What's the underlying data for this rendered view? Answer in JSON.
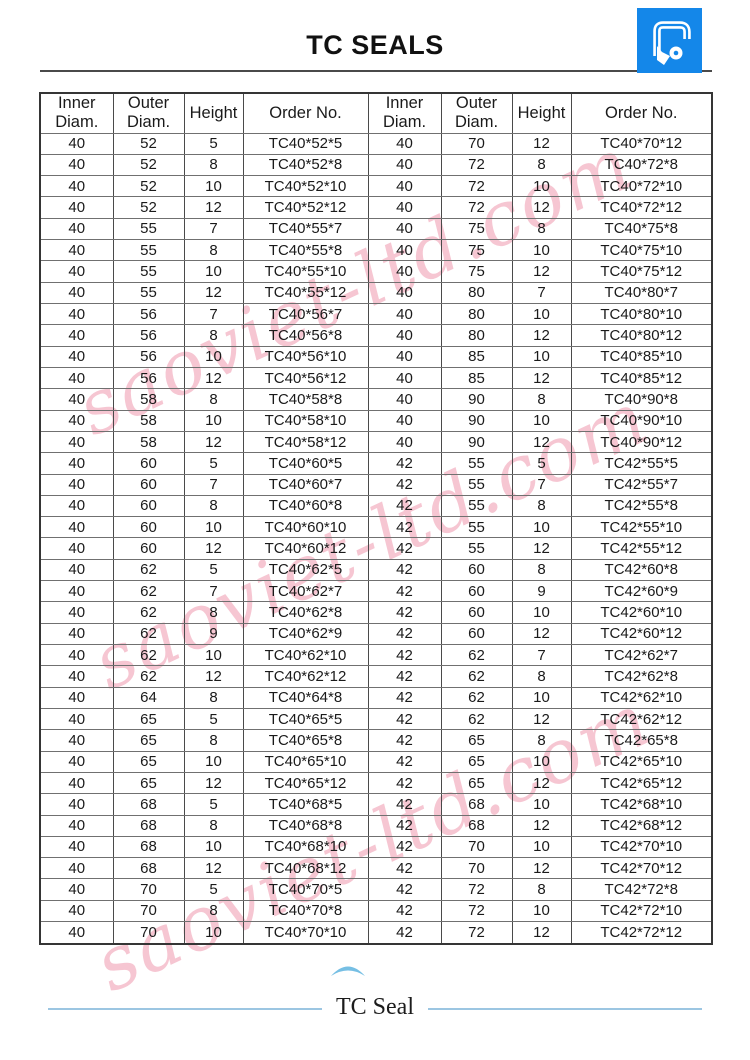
{
  "header": {
    "title": "TC SEALS"
  },
  "logo": {
    "background_color": "#1487e9",
    "icon": "oil-seal-cross-section"
  },
  "watermark": {
    "text": "saoviet-ltd.com",
    "color": "rgba(238,151,173,0.55)"
  },
  "table": {
    "headers": [
      "Inner Diam.",
      "Outer Diam.",
      "Height",
      "Order No.",
      "Inner Diam.",
      "Outer Diam.",
      "Height",
      "Order No."
    ],
    "rows": [
      [
        "40",
        "52",
        "5",
        "TC40*52*5",
        "40",
        "70",
        "12",
        "TC40*70*12"
      ],
      [
        "40",
        "52",
        "8",
        "TC40*52*8",
        "40",
        "72",
        "8",
        "TC40*72*8"
      ],
      [
        "40",
        "52",
        "10",
        "TC40*52*10",
        "40",
        "72",
        "10",
        "TC40*72*10"
      ],
      [
        "40",
        "52",
        "12",
        "TC40*52*12",
        "40",
        "72",
        "12",
        "TC40*72*12"
      ],
      [
        "40",
        "55",
        "7",
        "TC40*55*7",
        "40",
        "75",
        "8",
        "TC40*75*8"
      ],
      [
        "40",
        "55",
        "8",
        "TC40*55*8",
        "40",
        "75",
        "10",
        "TC40*75*10"
      ],
      [
        "40",
        "55",
        "10",
        "TC40*55*10",
        "40",
        "75",
        "12",
        "TC40*75*12"
      ],
      [
        "40",
        "55",
        "12",
        "TC40*55*12",
        "40",
        "80",
        "7",
        "TC40*80*7"
      ],
      [
        "40",
        "56",
        "7",
        "TC40*56*7",
        "40",
        "80",
        "10",
        "TC40*80*10"
      ],
      [
        "40",
        "56",
        "8",
        "TC40*56*8",
        "40",
        "80",
        "12",
        "TC40*80*12"
      ],
      [
        "40",
        "56",
        "10",
        "TC40*56*10",
        "40",
        "85",
        "10",
        "TC40*85*10"
      ],
      [
        "40",
        "56",
        "12",
        "TC40*56*12",
        "40",
        "85",
        "12",
        "TC40*85*12"
      ],
      [
        "40",
        "58",
        "8",
        "TC40*58*8",
        "40",
        "90",
        "8",
        "TC40*90*8"
      ],
      [
        "40",
        "58",
        "10",
        "TC40*58*10",
        "40",
        "90",
        "10",
        "TC40*90*10"
      ],
      [
        "40",
        "58",
        "12",
        "TC40*58*12",
        "40",
        "90",
        "12",
        "TC40*90*12"
      ],
      [
        "40",
        "60",
        "5",
        "TC40*60*5",
        "42",
        "55",
        "5",
        "TC42*55*5"
      ],
      [
        "40",
        "60",
        "7",
        "TC40*60*7",
        "42",
        "55",
        "7",
        "TC42*55*7"
      ],
      [
        "40",
        "60",
        "8",
        "TC40*60*8",
        "42",
        "55",
        "8",
        "TC42*55*8"
      ],
      [
        "40",
        "60",
        "10",
        "TC40*60*10",
        "42",
        "55",
        "10",
        "TC42*55*10"
      ],
      [
        "40",
        "60",
        "12",
        "TC40*60*12",
        "42",
        "55",
        "12",
        "TC42*55*12"
      ],
      [
        "40",
        "62",
        "5",
        "TC40*62*5",
        "42",
        "60",
        "8",
        "TC42*60*8"
      ],
      [
        "40",
        "62",
        "7",
        "TC40*62*7",
        "42",
        "60",
        "9",
        "TC42*60*9"
      ],
      [
        "40",
        "62",
        "8",
        "TC40*62*8",
        "42",
        "60",
        "10",
        "TC42*60*10"
      ],
      [
        "40",
        "62",
        "9",
        "TC40*62*9",
        "42",
        "60",
        "12",
        "TC42*60*12"
      ],
      [
        "40",
        "62",
        "10",
        "TC40*62*10",
        "42",
        "62",
        "7",
        "TC42*62*7"
      ],
      [
        "40",
        "62",
        "12",
        "TC40*62*12",
        "42",
        "62",
        "8",
        "TC42*62*8"
      ],
      [
        "40",
        "64",
        "8",
        "TC40*64*8",
        "42",
        "62",
        "10",
        "TC42*62*10"
      ],
      [
        "40",
        "65",
        "5",
        "TC40*65*5",
        "42",
        "62",
        "12",
        "TC42*62*12"
      ],
      [
        "40",
        "65",
        "8",
        "TC40*65*8",
        "42",
        "65",
        "8",
        "TC42*65*8"
      ],
      [
        "40",
        "65",
        "10",
        "TC40*65*10",
        "42",
        "65",
        "10",
        "TC42*65*10"
      ],
      [
        "40",
        "65",
        "12",
        "TC40*65*12",
        "42",
        "65",
        "12",
        "TC42*65*12"
      ],
      [
        "40",
        "68",
        "5",
        "TC40*68*5",
        "42",
        "68",
        "10",
        "TC42*68*10"
      ],
      [
        "40",
        "68",
        "8",
        "TC40*68*8",
        "42",
        "68",
        "12",
        "TC42*68*12"
      ],
      [
        "40",
        "68",
        "10",
        "TC40*68*10",
        "42",
        "70",
        "10",
        "TC42*70*10"
      ],
      [
        "40",
        "68",
        "12",
        "TC40*68*12",
        "42",
        "70",
        "12",
        "TC42*70*12"
      ],
      [
        "40",
        "70",
        "5",
        "TC40*70*5",
        "42",
        "72",
        "8",
        "TC42*72*8"
      ],
      [
        "40",
        "70",
        "8",
        "TC40*70*8",
        "42",
        "72",
        "10",
        "TC42*72*10"
      ],
      [
        "40",
        "70",
        "10",
        "TC40*70*10",
        "42",
        "72",
        "12",
        "TC42*72*12"
      ]
    ]
  },
  "footer": {
    "label": "TC Seal",
    "line_color": "#9cc6e2"
  }
}
